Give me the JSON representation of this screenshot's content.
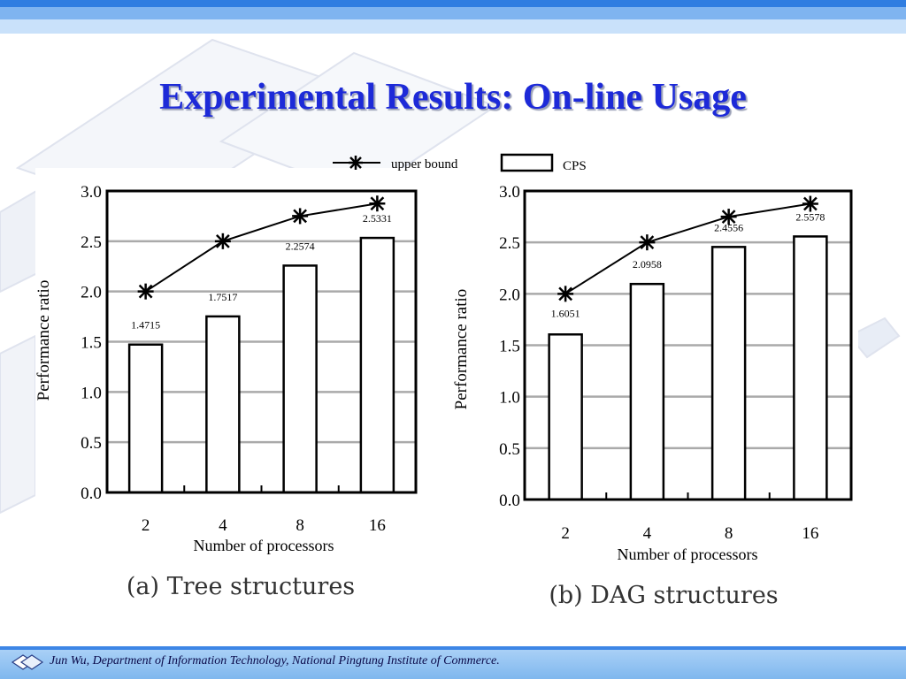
{
  "slide": {
    "title": "Experimental Results: On-line Usage",
    "footer": "Jun Wu, Department of Information Technology, National Pingtung Institute of Commerce.",
    "colors": {
      "title": "#1d2ad8",
      "stripe": "#2f7de1",
      "footer": "#7fb7ee"
    }
  },
  "legend": {
    "upper_bound": "upper bound",
    "cps": "CPS"
  },
  "chart_data": [
    {
      "type": "bar",
      "title": "(a) Tree structures",
      "xlabel": "Number of processors",
      "ylabel": "Performance ratio",
      "categories": [
        "2",
        "4",
        "8",
        "16"
      ],
      "ylim": [
        0,
        3
      ],
      "yticks": [
        "0.0",
        "0.5",
        "1.0",
        "1.5",
        "2.0",
        "2.5",
        "3.0"
      ],
      "grid": true,
      "series": [
        {
          "name": "CPS",
          "type": "bar",
          "values": [
            1.4715,
            1.7517,
            2.2574,
            2.5331
          ],
          "labels": [
            "1.4715",
            "1.7517",
            "2.2574",
            "2.5331"
          ]
        },
        {
          "name": "upper bound",
          "type": "line",
          "values": [
            2.0,
            2.5,
            2.75,
            2.875
          ]
        }
      ]
    },
    {
      "type": "bar",
      "title": "(b) DAG structures",
      "xlabel": "Number of processors",
      "ylabel": "Performance ratio",
      "categories": [
        "2",
        "4",
        "8",
        "16"
      ],
      "ylim": [
        0,
        3
      ],
      "yticks": [
        "0.0",
        "0.5",
        "1.0",
        "1.5",
        "2.0",
        "2.5",
        "3.0"
      ],
      "grid": true,
      "series": [
        {
          "name": "CPS",
          "type": "bar",
          "values": [
            1.6051,
            2.0958,
            2.4556,
            2.5578
          ],
          "labels": [
            "1.6051",
            "2.0958",
            "2.4556",
            "2.5578"
          ]
        },
        {
          "name": "upper bound",
          "type": "line",
          "values": [
            2.0,
            2.5,
            2.75,
            2.875
          ]
        }
      ]
    }
  ]
}
